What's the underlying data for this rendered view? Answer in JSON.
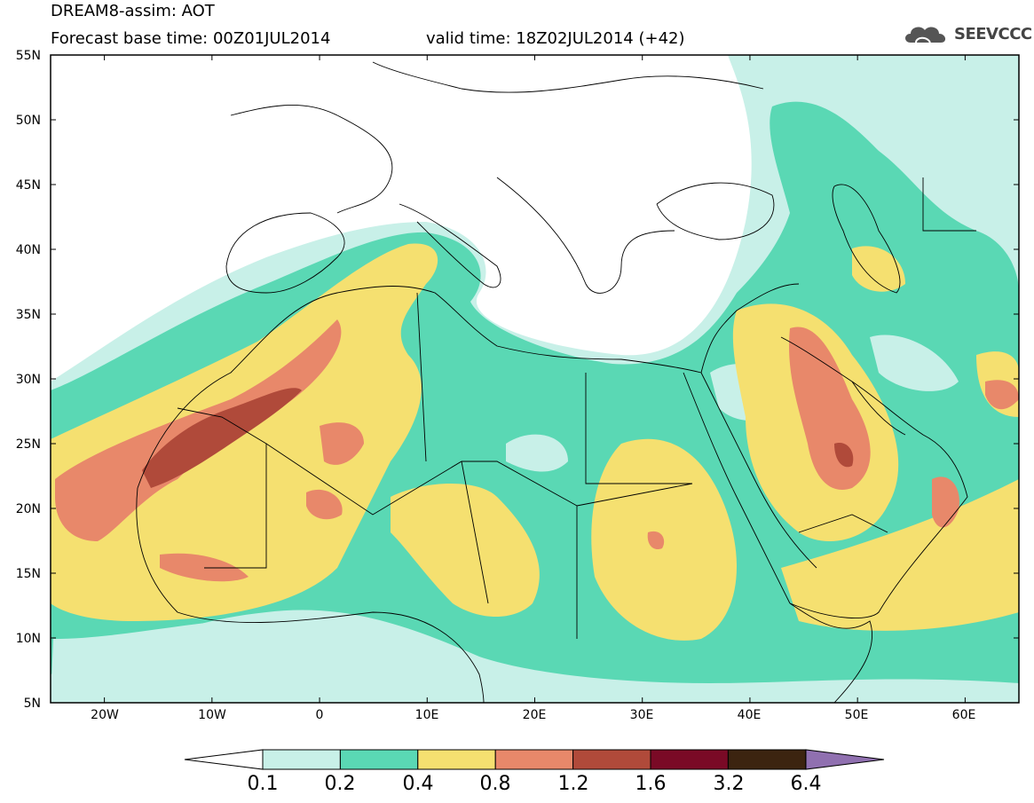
{
  "title": {
    "line1": "DREAM8-assim: AOT",
    "base_time": "Forecast base time: 00Z01JUL2014",
    "valid_time": "valid time: 18Z02JUL2014 (+42)"
  },
  "logo": {
    "text": "SEEVCCC",
    "icon": "cloud-icon"
  },
  "variable": "AOT",
  "map": {
    "projection": "lat-lon",
    "lon_range": [
      -25,
      65
    ],
    "lat_range": [
      5,
      55
    ],
    "lat_ticks": [
      "55N",
      "50N",
      "45N",
      "40N",
      "35N",
      "30N",
      "25N",
      "20N",
      "15N",
      "10N",
      "5N"
    ],
    "lon_ticks": [
      "20W",
      "10W",
      "0",
      "10E",
      "20E",
      "30E",
      "40E",
      "50E",
      "60E"
    ]
  },
  "colorbar": {
    "levels": [
      "0.1",
      "0.2",
      "0.4",
      "0.8",
      "1.2",
      "1.6",
      "3.2",
      "6.4"
    ],
    "colors": [
      "#c8f0e8",
      "#5ad8b4",
      "#f5e070",
      "#e8886a",
      "#b04a3a",
      "#7a0a26",
      "#3c2410",
      "#9070b0"
    ],
    "low_end_color": "#ffffff",
    "high_end_color": "#9070b0"
  }
}
